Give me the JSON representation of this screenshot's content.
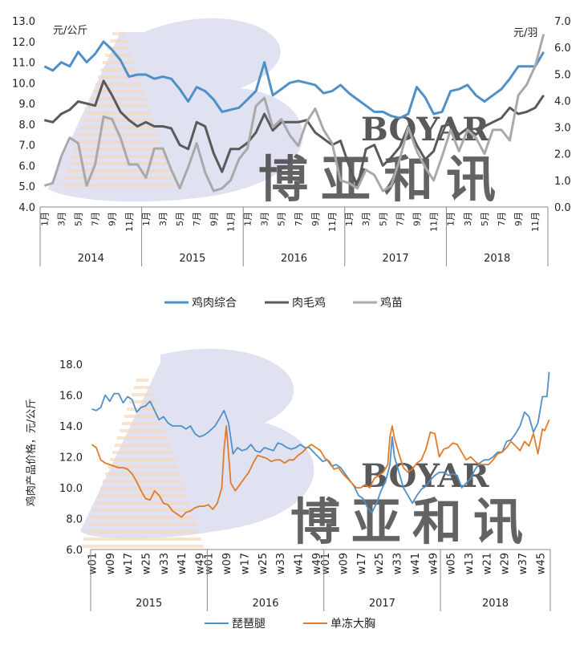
{
  "chart_data": [
    {
      "type": "line",
      "left_axis_unit": "元/公斤",
      "right_axis_unit": "元/羽",
      "left_ylim": [
        4.0,
        13.0
      ],
      "left_yticks": [
        "4.0",
        "5.0",
        "6.0",
        "7.0",
        "8.0",
        "9.0",
        "10.0",
        "11.0",
        "12.0",
        "13.0"
      ],
      "right_ylim": [
        0.0,
        7.0
      ],
      "right_yticks": [
        "0.0",
        "1.0",
        "2.0",
        "3.0",
        "4.0",
        "5.0",
        "6.0",
        "7.0"
      ],
      "month_labels": [
        "1月",
        "3月",
        "5月",
        "7月",
        "9月",
        "11月"
      ],
      "years": [
        "2014",
        "2015",
        "2016",
        "2017",
        "2018"
      ],
      "series": [
        {
          "name": "鸡肉综合",
          "axis": "left",
          "color": "#4f90c8",
          "values": [
            10.8,
            10.6,
            11.0,
            10.8,
            11.5,
            11.0,
            11.4,
            12.0,
            11.6,
            11.1,
            10.3,
            10.4,
            10.4,
            10.2,
            10.3,
            10.2,
            9.7,
            9.1,
            9.8,
            9.6,
            9.2,
            8.6,
            8.7,
            8.8,
            9.2,
            9.6,
            11.0,
            9.4,
            9.7,
            10.0,
            10.1,
            10.0,
            9.9,
            9.5,
            9.6,
            9.9,
            9.5,
            9.2,
            8.9,
            8.6,
            8.6,
            8.4,
            8.3,
            8.5,
            9.8,
            9.3,
            8.5,
            8.6,
            9.6,
            9.7,
            9.9,
            9.4,
            9.1,
            9.4,
            9.7,
            10.2,
            10.8,
            10.8,
            10.8,
            11.5
          ]
        },
        {
          "name": "肉毛鸡",
          "axis": "left",
          "color": "#5a5a5a",
          "values": [
            8.2,
            8.1,
            8.5,
            8.7,
            9.1,
            9.0,
            8.9,
            10.1,
            9.4,
            8.6,
            8.2,
            7.9,
            8.1,
            7.9,
            7.9,
            7.8,
            7.0,
            6.8,
            8.1,
            7.9,
            6.6,
            5.7,
            6.8,
            6.8,
            7.1,
            7.6,
            8.5,
            7.7,
            8.1,
            8.1,
            8.1,
            8.2,
            7.6,
            7.3,
            7.0,
            7.2,
            6.0,
            5.0,
            6.8,
            7.0,
            6.0,
            6.4,
            6.9,
            7.9,
            7.0,
            6.3,
            6.7,
            7.9,
            8.0,
            7.5,
            7.8,
            7.5,
            7.9,
            8.1,
            8.3,
            8.8,
            8.5,
            8.6,
            8.8,
            9.4
          ]
        },
        {
          "name": "鸡苗",
          "axis": "right",
          "color": "#a9a9a9",
          "values": [
            0.8,
            0.9,
            1.9,
            2.6,
            2.4,
            0.8,
            1.6,
            3.4,
            3.3,
            2.6,
            1.6,
            1.6,
            1.1,
            2.2,
            2.2,
            1.4,
            0.7,
            1.5,
            2.4,
            1.3,
            0.6,
            0.7,
            1.0,
            1.8,
            2.2,
            3.8,
            4.1,
            3.0,
            3.3,
            2.7,
            2.3,
            3.2,
            3.7,
            2.9,
            2.4,
            1.0,
            0.9,
            0.7,
            1.4,
            1.2,
            0.6,
            0.8,
            1.8,
            3.0,
            2.1,
            1.5,
            1.0,
            1.9,
            2.9,
            2.1,
            2.9,
            2.6,
            2.0,
            2.9,
            2.9,
            2.5,
            4.2,
            4.6,
            5.3,
            6.5
          ]
        }
      ]
    },
    {
      "type": "line",
      "ylabel": "鸡肉产品价格，元/公斤",
      "ylim": [
        6.0,
        18.0
      ],
      "yticks": [
        "6.0",
        "8.0",
        "10.0",
        "12.0",
        "14.0",
        "16.0",
        "18.0"
      ],
      "week_labels": [
        "w01",
        "w09",
        "w17",
        "w25",
        "w33",
        "w41",
        "w49"
      ],
      "week_labels_2018": [
        "w05",
        "w13",
        "w21",
        "w29",
        "w37",
        "w45"
      ],
      "years": [
        "2015",
        "2016",
        "2017",
        "2018"
      ],
      "series": [
        {
          "name": "琵琶腿",
          "color": "#4f90c8",
          "points": [
            [
              1,
              15.1
            ],
            [
              3,
              15.0
            ],
            [
              5,
              15.2
            ],
            [
              7,
              16.0
            ],
            [
              9,
              15.6
            ],
            [
              11,
              16.1
            ],
            [
              13,
              16.1
            ],
            [
              15,
              15.5
            ],
            [
              17,
              15.9
            ],
            [
              19,
              15.7
            ],
            [
              21,
              14.9
            ],
            [
              23,
              15.2
            ],
            [
              25,
              15.3
            ],
            [
              27,
              15.6
            ],
            [
              29,
              15.0
            ],
            [
              31,
              14.4
            ],
            [
              33,
              14.6
            ],
            [
              35,
              14.2
            ],
            [
              37,
              14.0
            ],
            [
              39,
              14.0
            ],
            [
              41,
              14.0
            ],
            [
              43,
              13.8
            ],
            [
              45,
              14.0
            ],
            [
              47,
              13.5
            ],
            [
              49,
              13.3
            ],
            [
              51,
              13.4
            ],
            [
              53,
              13.6
            ],
            [
              56,
              14.0
            ],
            [
              58,
              14.5
            ],
            [
              60,
              15.0
            ],
            [
              62,
              14.2
            ],
            [
              63,
              13.2
            ],
            [
              64,
              12.2
            ],
            [
              66,
              12.6
            ],
            [
              68,
              12.4
            ],
            [
              70,
              12.5
            ],
            [
              72,
              12.8
            ],
            [
              74,
              12.4
            ],
            [
              76,
              12.3
            ],
            [
              78,
              12.6
            ],
            [
              80,
              12.5
            ],
            [
              82,
              12.4
            ],
            [
              84,
              12.9
            ],
            [
              86,
              12.8
            ],
            [
              88,
              12.6
            ],
            [
              90,
              12.5
            ],
            [
              92,
              12.6
            ],
            [
              94,
              12.8
            ],
            [
              96,
              12.6
            ],
            [
              98,
              12.6
            ],
            [
              100,
              12.3
            ],
            [
              102,
              12.0
            ],
            [
              104,
              11.7
            ],
            [
              106,
              11.8
            ],
            [
              108,
              11.4
            ],
            [
              110,
              11.5
            ],
            [
              112,
              11.3
            ],
            [
              114,
              10.9
            ],
            [
              116,
              10.5
            ],
            [
              118,
              10.1
            ],
            [
              120,
              9.5
            ],
            [
              122,
              9.3
            ],
            [
              124,
              8.7
            ],
            [
              126,
              8.4
            ],
            [
              128,
              9.0
            ],
            [
              130,
              9.8
            ],
            [
              132,
              10.4
            ],
            [
              134,
              11.5
            ],
            [
              135,
              13.3
            ],
            [
              136,
              12.0
            ],
            [
              138,
              11.0
            ],
            [
              140,
              10.0
            ],
            [
              142,
              9.5
            ],
            [
              144,
              9.0
            ],
            [
              146,
              9.5
            ],
            [
              148,
              9.9
            ],
            [
              150,
              10.1
            ],
            [
              152,
              10.5
            ],
            [
              154,
              10.8
            ],
            [
              156,
              11.0
            ],
            [
              158,
              11.0
            ],
            [
              160,
              10.8
            ],
            [
              162,
              10.9
            ],
            [
              164,
              10.8
            ],
            [
              166,
              10.0
            ],
            [
              168,
              10.3
            ],
            [
              170,
              10.6
            ],
            [
              172,
              11.2
            ],
            [
              174,
              11.6
            ],
            [
              176,
              11.8
            ],
            [
              178,
              11.8
            ],
            [
              180,
              12.0
            ],
            [
              182,
              12.3
            ],
            [
              184,
              12.3
            ],
            [
              186,
              13.0
            ],
            [
              188,
              13.1
            ],
            [
              190,
              13.5
            ],
            [
              192,
              14.0
            ],
            [
              194,
              14.9
            ],
            [
              196,
              14.6
            ],
            [
              198,
              13.6
            ],
            [
              200,
              14.2
            ],
            [
              202,
              15.9
            ],
            [
              204,
              15.9
            ],
            [
              205,
              17.5
            ]
          ]
        },
        {
          "name": "单冻大胸",
          "color": "#e07b2a",
          "points": [
            [
              1,
              12.8
            ],
            [
              3,
              12.6
            ],
            [
              5,
              11.8
            ],
            [
              7,
              11.6
            ],
            [
              9,
              11.5
            ],
            [
              11,
              11.4
            ],
            [
              13,
              11.3
            ],
            [
              15,
              11.3
            ],
            [
              17,
              11.2
            ],
            [
              19,
              10.9
            ],
            [
              21,
              10.4
            ],
            [
              23,
              9.8
            ],
            [
              25,
              9.3
            ],
            [
              27,
              9.2
            ],
            [
              29,
              9.8
            ],
            [
              31,
              9.5
            ],
            [
              33,
              9.0
            ],
            [
              35,
              8.9
            ],
            [
              37,
              8.5
            ],
            [
              39,
              8.3
            ],
            [
              41,
              8.1
            ],
            [
              43,
              8.4
            ],
            [
              45,
              8.5
            ],
            [
              47,
              8.7
            ],
            [
              49,
              8.8
            ],
            [
              51,
              8.8
            ],
            [
              53,
              8.9
            ],
            [
              55,
              8.6
            ],
            [
              57,
              9.0
            ],
            [
              59,
              10.0
            ],
            [
              60,
              12.5
            ],
            [
              61,
              14.0
            ],
            [
              62,
              12.2
            ],
            [
              63,
              10.3
            ],
            [
              65,
              9.8
            ],
            [
              67,
              10.2
            ],
            [
              69,
              10.6
            ],
            [
              71,
              11.0
            ],
            [
              73,
              11.6
            ],
            [
              75,
              12.1
            ],
            [
              77,
              12.0
            ],
            [
              79,
              11.9
            ],
            [
              81,
              11.7
            ],
            [
              83,
              11.8
            ],
            [
              85,
              11.8
            ],
            [
              87,
              11.6
            ],
            [
              89,
              11.8
            ],
            [
              91,
              11.8
            ],
            [
              93,
              12.1
            ],
            [
              95,
              12.3
            ],
            [
              97,
              12.6
            ],
            [
              99,
              12.8
            ],
            [
              101,
              12.6
            ],
            [
              103,
              12.4
            ],
            [
              105,
              11.9
            ],
            [
              107,
              11.7
            ],
            [
              109,
              11.2
            ],
            [
              111,
              11.3
            ],
            [
              113,
              10.9
            ],
            [
              115,
              10.6
            ],
            [
              117,
              10.3
            ],
            [
              119,
              10.0
            ],
            [
              121,
              10.0
            ],
            [
              123,
              10.2
            ],
            [
              125,
              10.0
            ],
            [
              127,
              10.6
            ],
            [
              129,
              10.8
            ],
            [
              131,
              11.0
            ],
            [
              133,
              11.5
            ],
            [
              134,
              13.3
            ],
            [
              135,
              14.0
            ],
            [
              136,
              13.2
            ],
            [
              138,
              12.2
            ],
            [
              140,
              11.3
            ],
            [
              142,
              11.0
            ],
            [
              144,
              11.2
            ],
            [
              146,
              11.6
            ],
            [
              148,
              11.8
            ],
            [
              150,
              12.5
            ],
            [
              152,
              13.6
            ],
            [
              154,
              13.5
            ],
            [
              156,
              12.0
            ],
            [
              158,
              12.5
            ],
            [
              160,
              12.6
            ],
            [
              162,
              12.9
            ],
            [
              164,
              12.8
            ],
            [
              166,
              12.3
            ],
            [
              168,
              11.8
            ],
            [
              170,
              12.0
            ],
            [
              172,
              11.7
            ],
            [
              174,
              11.5
            ],
            [
              176,
              11.5
            ],
            [
              178,
              11.5
            ],
            [
              180,
              11.8
            ],
            [
              182,
              12.2
            ],
            [
              184,
              12.3
            ],
            [
              186,
              12.6
            ],
            [
              188,
              13.0
            ],
            [
              190,
              12.7
            ],
            [
              192,
              12.4
            ],
            [
              194,
              13.0
            ],
            [
              196,
              12.7
            ],
            [
              198,
              13.5
            ],
            [
              200,
              12.2
            ],
            [
              202,
              13.8
            ],
            [
              203,
              13.7
            ],
            [
              205,
              14.4
            ]
          ]
        }
      ]
    }
  ],
  "watermark": {
    "brand_latin": "BOYAR",
    "brand_cn": "博亚和讯"
  }
}
